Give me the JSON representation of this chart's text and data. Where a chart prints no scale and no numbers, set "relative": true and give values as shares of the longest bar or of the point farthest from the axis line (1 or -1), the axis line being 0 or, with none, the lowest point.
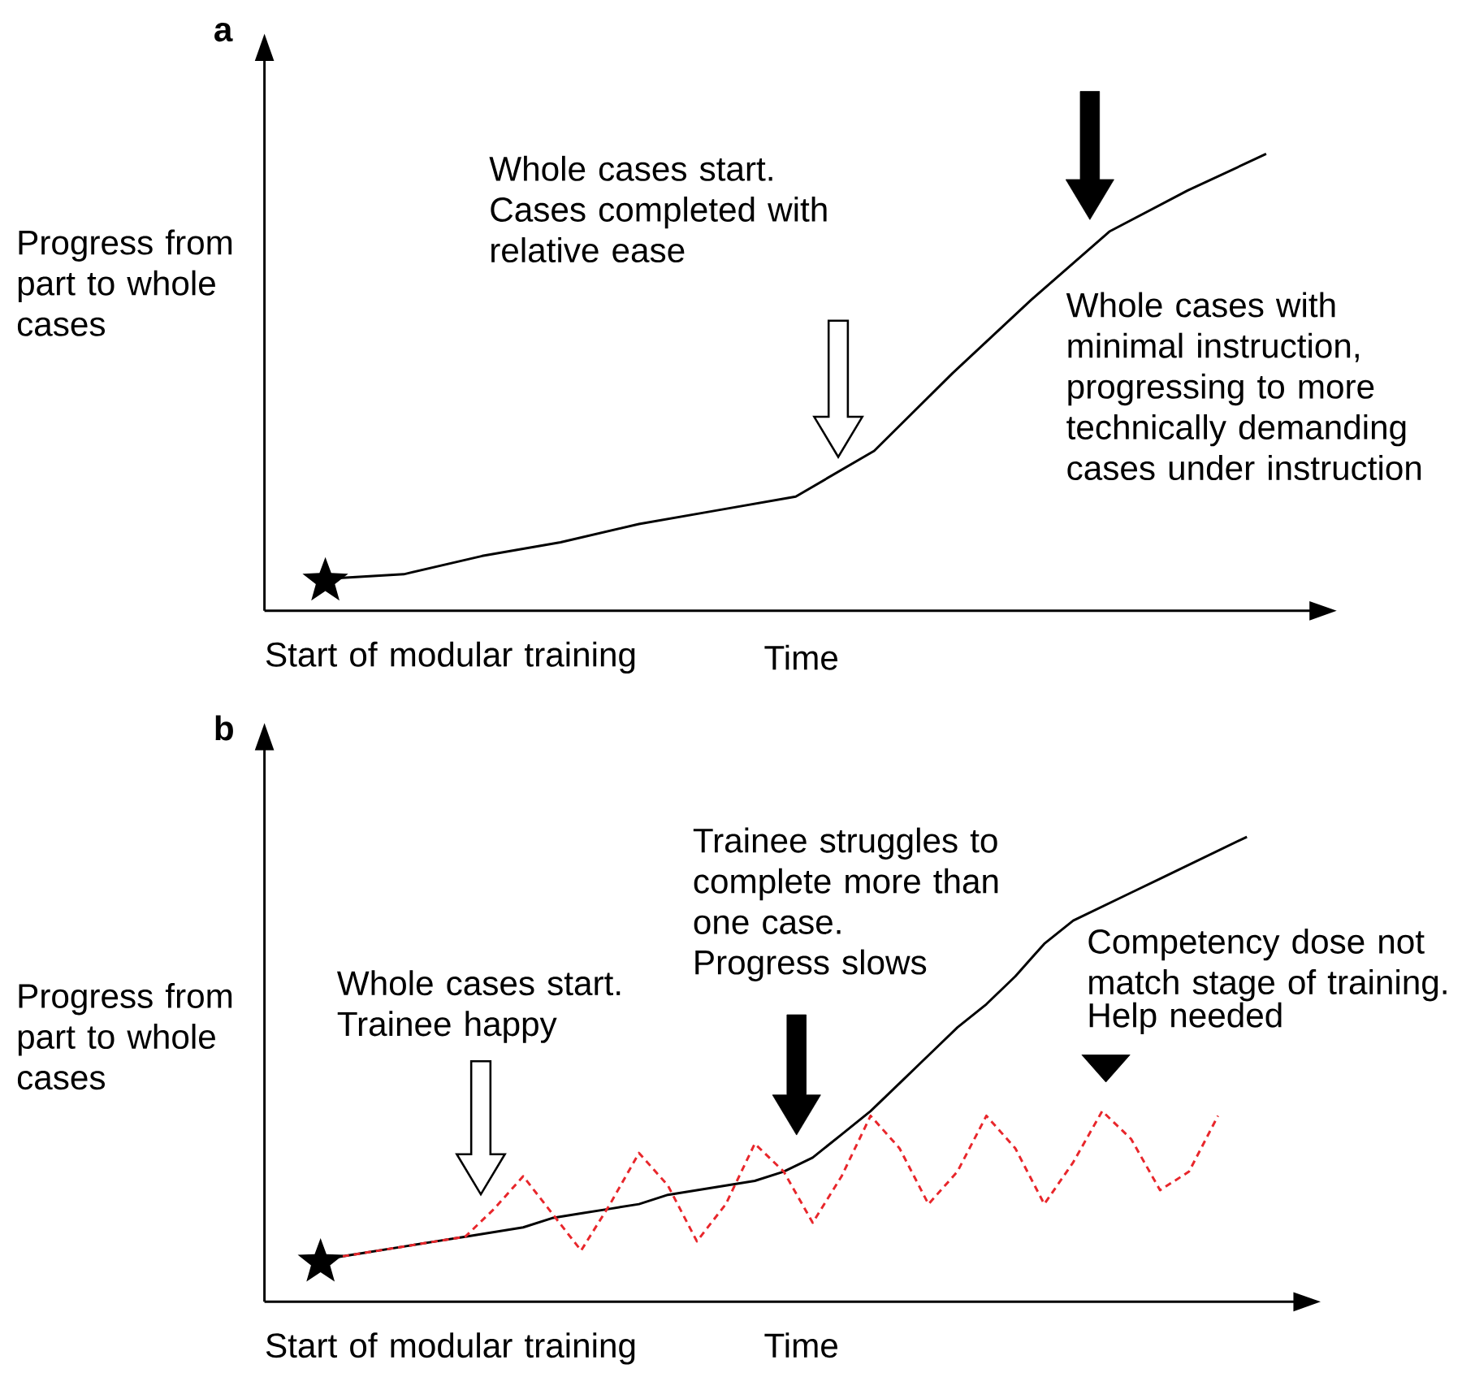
{
  "chart_data": [
    {
      "type": "line",
      "title": "a",
      "xlabel": "Time",
      "ylabel": "Progress from part to whole cases",
      "relative": true,
      "categories": [
        null,
        null,
        null,
        null,
        null,
        null,
        null,
        null,
        null,
        null,
        null,
        null,
        null
      ],
      "series": [
        {
          "color": "#000000",
          "values": [
            0.07,
            0.08,
            0.12,
            0.15,
            0.19,
            0.22,
            0.25,
            0.35,
            0.52,
            0.68,
            0.83,
            0.92,
            1.0
          ]
        }
      ],
      "annotations": [
        "Whole cases start. Cases completed with relative ease",
        "Whole cases with minimal instruction, progressing to more technically demanding cases under instruction",
        "Start of modular training"
      ]
    },
    {
      "type": "line",
      "title": "b",
      "xlabel": "Time",
      "ylabel": "Progress from part to whole cases",
      "relative": true,
      "categories": [
        null,
        null,
        null,
        null,
        null,
        null,
        null,
        null,
        null,
        null,
        null,
        null,
        null,
        null,
        null,
        null,
        null,
        null,
        null,
        null,
        null,
        null,
        null,
        null,
        null,
        null,
        null,
        null,
        null,
        null,
        null,
        null,
        null
      ],
      "series": [
        {
          "color": "#000000",
          "values": [
            0.09,
            0.1,
            0.11,
            0.12,
            0.13,
            0.14,
            0.15,
            0.16,
            0.18,
            0.19,
            0.2,
            0.21,
            0.23,
            0.24,
            0.25,
            0.26,
            0.28,
            0.31,
            0.36,
            0.41,
            0.47,
            0.53,
            0.59,
            0.64,
            0.7,
            0.77,
            0.82,
            0.85,
            0.88,
            0.91,
            0.94,
            0.97,
            1.0
          ]
        },
        {
          "line_style": "dashed",
          "color": "#e8262b",
          "values": [
            0.09,
            0.1,
            0.11,
            0.12,
            0.13,
            0.14,
            0.2,
            0.27,
            0.19,
            0.11,
            0.21,
            0.32,
            0.25,
            0.13,
            0.21,
            0.34,
            0.28,
            0.17,
            0.27,
            0.4,
            0.33,
            0.21,
            0.28,
            0.4,
            0.33,
            0.21,
            0.3,
            0.41,
            0.35,
            0.24,
            0.28,
            0.4,
            null
          ]
        }
      ],
      "annotations": [
        "Whole cases start. Trainee happy",
        "Trainee struggles to complete more than one case.",
        "Progress slows",
        "Competency dose not match stage of training.",
        "Help needed",
        "Start of modular training"
      ]
    }
  ]
}
